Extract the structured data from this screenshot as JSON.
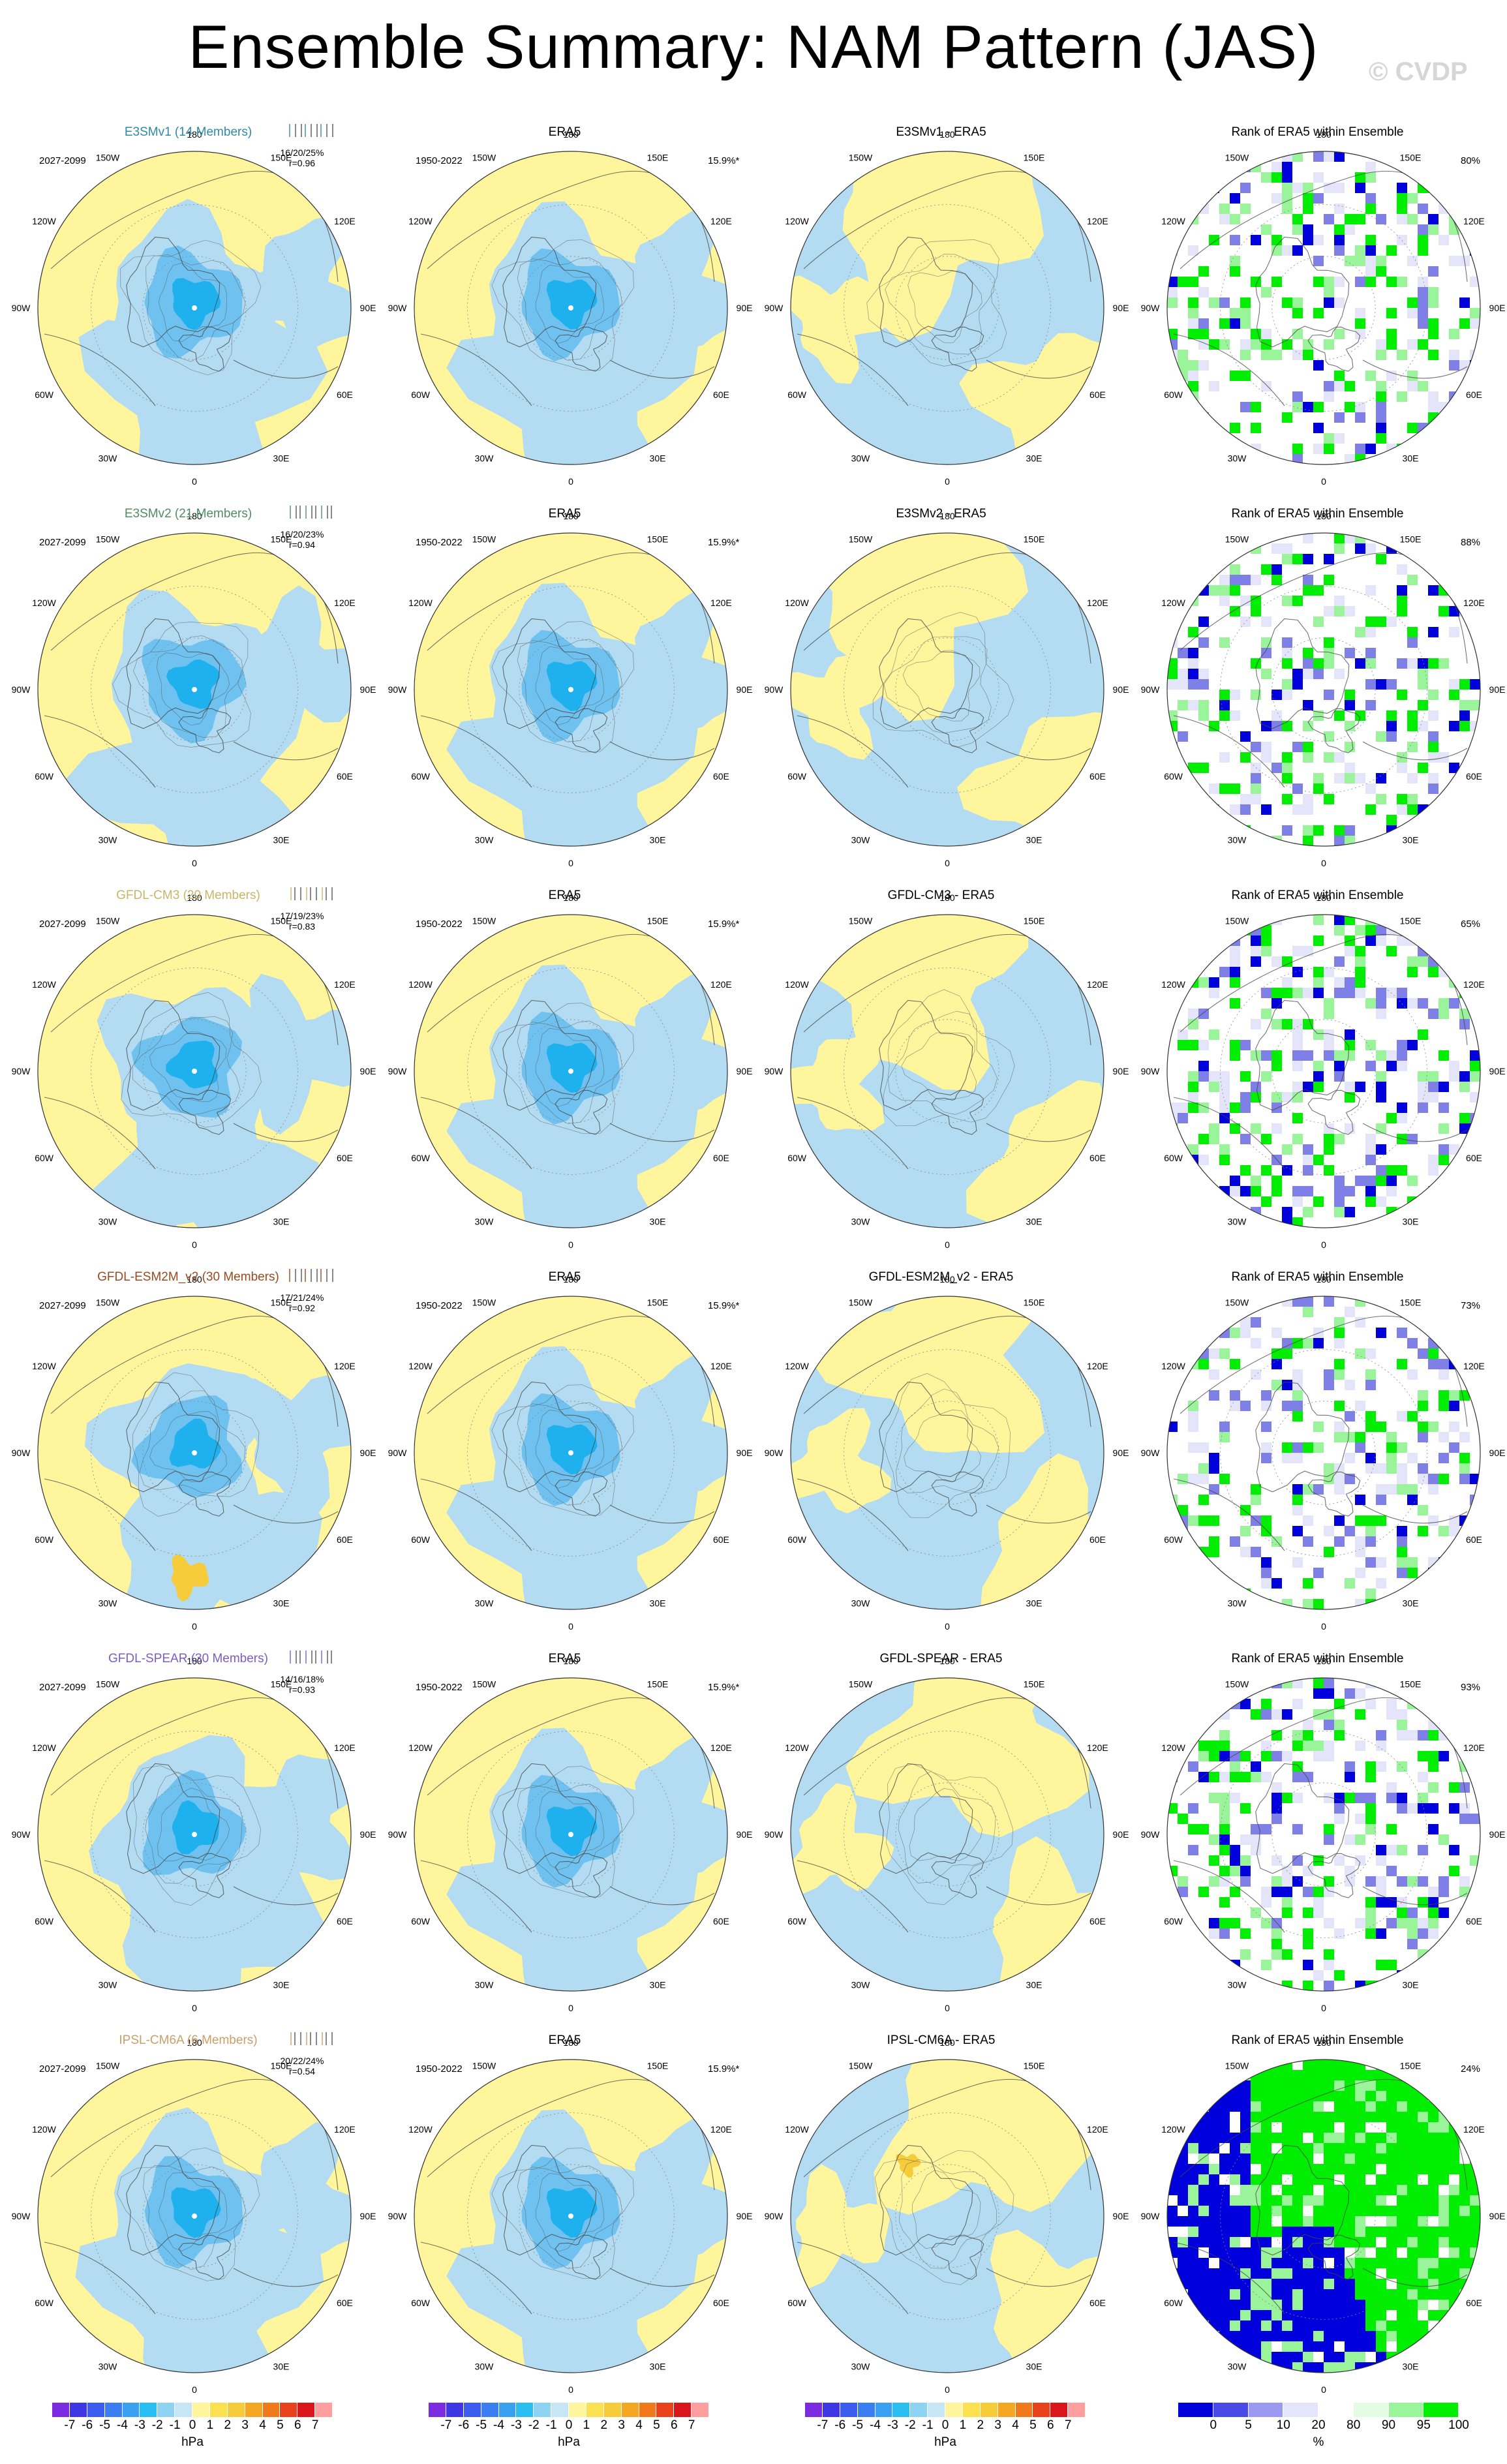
{
  "title": "Ensemble Summary: NAM Pattern (JAS)",
  "watermark": "© CVDP",
  "longitude_labels": [
    "180",
    "150E",
    "120E",
    "90E",
    "60E",
    "30E",
    "0",
    "30W",
    "60W",
    "90W",
    "120W",
    "150W"
  ],
  "colors": {
    "pos_light": "#fff59d",
    "neg_light": "#b3dcf2",
    "neg_mid": "#6fc1ef",
    "neg_strong": "#1fb0ee",
    "neg_deep": "#4a90d9",
    "pos_mid": "#f6cc3a",
    "rank_high": "#00ee00",
    "rank_mid": "#9af59a",
    "rank_low": "#0000dd",
    "rank_lowmid": "#7f7fe8",
    "rank_faint": "#e4e4fb"
  },
  "rows": [
    {
      "model": "E3SMv1 (14 Members)",
      "model_color": "#2f8aa8",
      "period": "2027-2099",
      "stats": "16/20/25%",
      "r": "r=0.96",
      "era5_title": "ERA5",
      "era5_period": "1950-2022",
      "era5_pct": "15.9%*",
      "diff_title": "E3SMv1 - ERA5",
      "rank_title": "Rank of ERA5 within Ensemble",
      "rank_pct": "80%",
      "rank_level": 0.8
    },
    {
      "model": "E3SMv2 (21 Members)",
      "model_color": "#4f8d66",
      "period": "2027-2099",
      "stats": "16/20/23%",
      "r": "r=0.94",
      "era5_title": "ERA5",
      "era5_period": "1950-2022",
      "era5_pct": "15.9%*",
      "diff_title": "E3SMv2 - ERA5",
      "rank_title": "Rank of ERA5 within Ensemble",
      "rank_pct": "88%",
      "rank_level": 0.88
    },
    {
      "model": "GFDL-CM3 (20 Members)",
      "model_color": "#c9b567",
      "period": "2027-2099",
      "stats": "17/19/23%",
      "r": "r=0.83",
      "era5_title": "ERA5",
      "era5_period": "1950-2022",
      "era5_pct": "15.9%*",
      "diff_title": "GFDL-CM3 - ERA5",
      "rank_title": "Rank of ERA5 within Ensemble",
      "rank_pct": "65%",
      "rank_level": 0.65
    },
    {
      "model": "GFDL-ESM2M_v2 (30 Members)",
      "model_color": "#9a4a1e",
      "period": "2027-2099",
      "stats": "17/21/24%",
      "r": "r=0.92",
      "era5_title": "ERA5",
      "era5_period": "1950-2022",
      "era5_pct": "15.9%*",
      "diff_title": "GFDL-ESM2M_v2 - ERA5",
      "rank_title": "Rank of ERA5 within Ensemble",
      "rank_pct": "73%",
      "rank_level": 0.73
    },
    {
      "model": "GFDL-SPEAR (30 Members)",
      "model_color": "#7a5cc4",
      "period": "2027-2099",
      "stats": "14/16/18%",
      "r": "r=0.93",
      "era5_title": "ERA5",
      "era5_period": "1950-2022",
      "era5_pct": "15.9%*",
      "diff_title": "GFDL-SPEAR - ERA5",
      "rank_title": "Rank of ERA5 within Ensemble",
      "rank_pct": "93%",
      "rank_level": 0.93
    },
    {
      "model": "IPSL-CM6A (6 Members)",
      "model_color": "#c8a06a",
      "period": "2027-2099",
      "stats": "20/22/24%",
      "r": "r=0.54",
      "era5_title": "ERA5",
      "era5_period": "1950-2022",
      "era5_pct": "15.9%*",
      "diff_title": "IPSL-CM6A - ERA5",
      "rank_title": "Rank of ERA5 within Ensemble",
      "rank_pct": "24%",
      "rank_level": 0.24
    }
  ],
  "hpa_colorbar": {
    "labels": [
      "-7",
      "-6",
      "-5",
      "-4",
      "-3",
      "-2",
      "-1",
      "0",
      "1",
      "2",
      "3",
      "4",
      "5",
      "6",
      "7"
    ],
    "colors": [
      "#7b2be0",
      "#3f37e6",
      "#3c5cf0",
      "#3a7ef2",
      "#3aa0f2",
      "#29bff2",
      "#8fd3f2",
      "#c7e6f5",
      "#fff59d",
      "#fbe14f",
      "#f6cc3a",
      "#f5a623",
      "#f07a1b",
      "#e8411b",
      "#d9161b",
      "#ff9e9e"
    ],
    "unit": "hPa"
  },
  "rank_colorbar": {
    "labels": [
      "0",
      "5",
      "10",
      "20",
      "80",
      "90",
      "95",
      "100"
    ],
    "colors": [
      "#0000dd",
      "#4a4ae6",
      "#9a9af0",
      "#e4e4fb",
      "#ffffff",
      "#e4fbe4",
      "#9af59a",
      "#00ee00"
    ],
    "unit": "%"
  }
}
